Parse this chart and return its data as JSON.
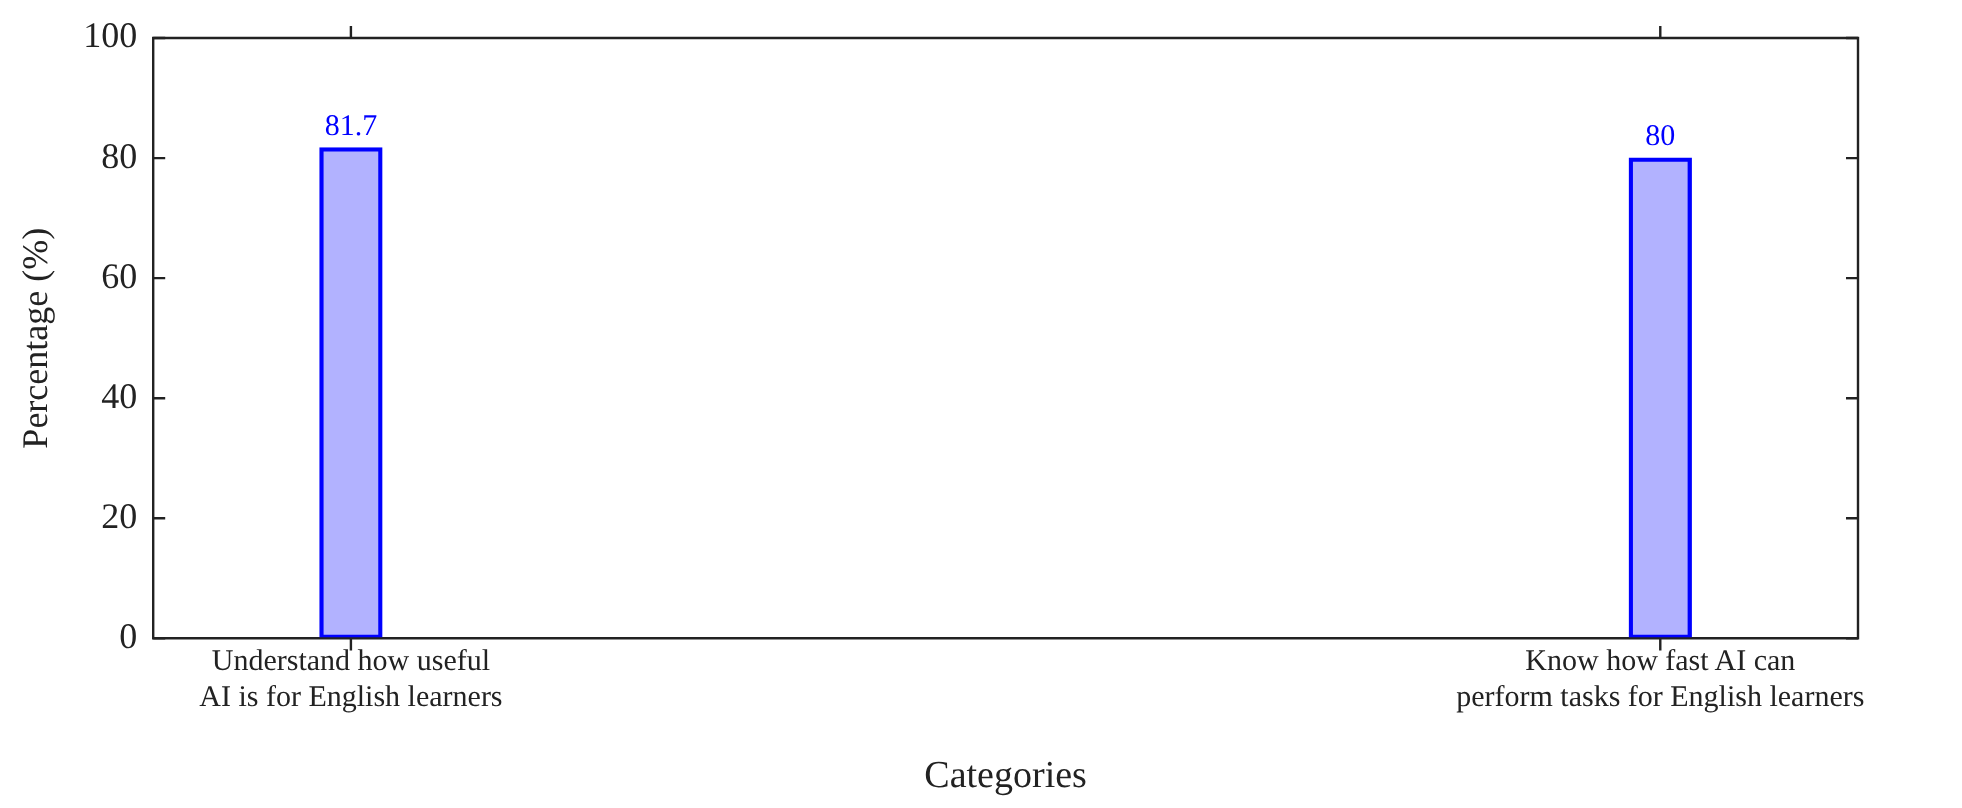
{
  "chart_data": {
    "type": "bar",
    "xlabel": "Categories",
    "ylabel": "Percentage (%)",
    "categories": [
      "Understand how useful\nAI is for English learners",
      "Know how fast AI can\nperform tasks for English learners"
    ],
    "values": [
      81.7,
      80
    ],
    "color": "#0000ff",
    "ylim": [
      0,
      100
    ],
    "yticks": [
      0,
      20,
      40,
      60,
      80,
      100
    ],
    "grid": false,
    "legend": false,
    "data_labels": true
  }
}
